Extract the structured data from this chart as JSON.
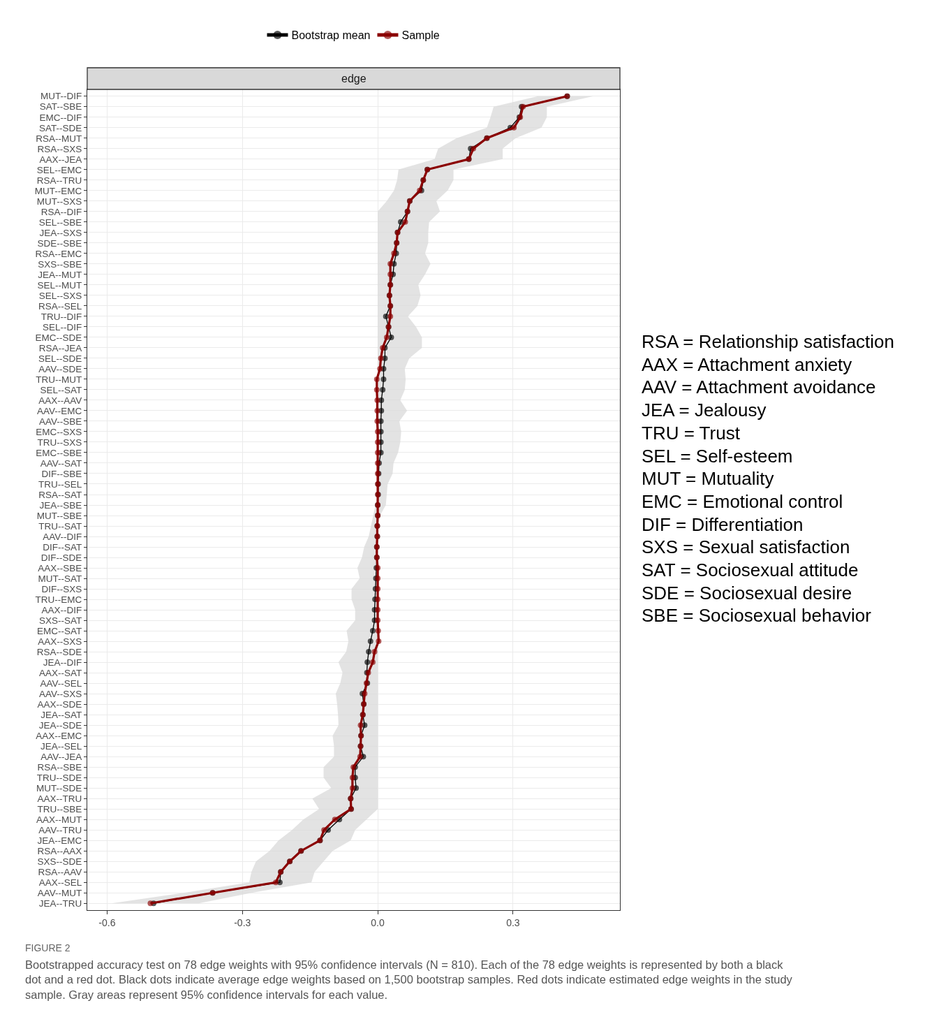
{
  "chart_data": {
    "type": "line",
    "title": "edge",
    "categories": [
      "MUT--DIF",
      "SAT--SBE",
      "EMC--DIF",
      "SAT--SDE",
      "RSA--MUT",
      "RSA--SXS",
      "AAX--JEA",
      "SEL--EMC",
      "RSA--TRU",
      "MUT--EMC",
      "MUT--SXS",
      "RSA--DIF",
      "SEL--SBE",
      "JEA--SXS",
      "SDE--SBE",
      "RSA--EMC",
      "SXS--SBE",
      "JEA--MUT",
      "SEL--MUT",
      "SEL--SXS",
      "RSA--SEL",
      "TRU--DIF",
      "SEL--DIF",
      "EMC--SDE",
      "RSA--JEA",
      "SEL--SDE",
      "AAV--SDE",
      "TRU--MUT",
      "SEL--SAT",
      "AAX--AAV",
      "AAV--EMC",
      "AAV--SBE",
      "EMC--SXS",
      "TRU--SXS",
      "EMC--SBE",
      "AAV--SAT",
      "DIF--SBE",
      "TRU--SEL",
      "RSA--SAT",
      "JEA--SBE",
      "MUT--SBE",
      "TRU--SAT",
      "AAV--DIF",
      "DIF--SAT",
      "DIF--SDE",
      "AAX--SBE",
      "MUT--SAT",
      "DIF--SXS",
      "TRU--EMC",
      "AAX--DIF",
      "SXS--SAT",
      "EMC--SAT",
      "AAX--SXS",
      "RSA--SDE",
      "JEA--DIF",
      "AAX--SAT",
      "AAV--SEL",
      "AAV--SXS",
      "AAX--SDE",
      "JEA--SAT",
      "JEA--SDE",
      "AAX--EMC",
      "JEA--SEL",
      "AAV--JEA",
      "RSA--SBE",
      "TRU--SDE",
      "MUT--SDE",
      "AAX--TRU",
      "TRU--SBE",
      "AAX--MUT",
      "AAV--TRU",
      "JEA--EMC",
      "RSA--AAX",
      "SXS--SDE",
      "RSA--AAV",
      "AAX--SEL",
      "AAV--MUT",
      "JEA--TRU"
    ],
    "orientation": "horizontal",
    "series": [
      {
        "name": "Bootstrap mean",
        "color": "#000000",
        "line_style": "solid",
        "marker": "circle",
        "values": [
          0.42,
          0.319,
          0.314,
          0.294,
          0.242,
          0.206,
          0.202,
          0.11,
          0.101,
          0.097,
          0.071,
          0.066,
          0.051,
          0.044,
          0.042,
          0.041,
          0.036,
          0.034,
          0.028,
          0.026,
          0.028,
          0.018,
          0.024,
          0.03,
          0.016,
          0.016,
          0.013,
          0.013,
          0.011,
          0.008,
          0.008,
          0.007,
          0.007,
          0.007,
          0.007,
          0.003,
          0.002,
          0.001,
          0.001,
          0.0,
          0.0,
          -0.001,
          -0.001,
          -0.002,
          -0.002,
          -0.003,
          -0.004,
          -0.005,
          -0.006,
          -0.007,
          -0.007,
          -0.011,
          -0.016,
          -0.02,
          -0.023,
          -0.024,
          -0.023,
          -0.034,
          -0.031,
          -0.033,
          -0.029,
          -0.037,
          -0.038,
          -0.032,
          -0.05,
          -0.05,
          -0.048,
          -0.06,
          -0.059,
          -0.085,
          -0.11,
          -0.128,
          -0.17,
          -0.195,
          -0.215,
          -0.217,
          -0.366,
          -0.497
        ],
        "lower": [
          0.355,
          0.257,
          0.25,
          0.242,
          0.175,
          0.134,
          0.126,
          0.046,
          0.043,
          0.036,
          0.02,
          0.0,
          0.0,
          0.0,
          0.0,
          0.0,
          0.0,
          0.0,
          0.0,
          0.0,
          0.0,
          0.0,
          0.0,
          0.0,
          0.0,
          0.0,
          0.0,
          0.0,
          0.0,
          0.0,
          0.0,
          0.0,
          0.0,
          0.0,
          0.0,
          0.0,
          0.0,
          0.0,
          0.0,
          -0.005,
          -0.01,
          -0.015,
          -0.02,
          -0.03,
          -0.035,
          -0.045,
          -0.04,
          -0.058,
          -0.058,
          -0.05,
          -0.05,
          -0.069,
          -0.065,
          -0.07,
          -0.087,
          -0.078,
          -0.083,
          -0.093,
          -0.09,
          -0.088,
          -0.087,
          -0.1,
          -0.097,
          -0.097,
          -0.12,
          -0.12,
          -0.103,
          -0.145,
          -0.13,
          -0.165,
          -0.19,
          -0.22,
          -0.24,
          -0.27,
          -0.28,
          -0.285,
          -0.43,
          -0.59
        ],
        "upper": [
          0.478,
          0.375,
          0.375,
          0.363,
          0.306,
          0.277,
          0.277,
          0.168,
          0.168,
          0.155,
          0.13,
          0.138,
          0.114,
          0.112,
          0.112,
          0.105,
          0.117,
          0.105,
          0.09,
          0.095,
          0.088,
          0.067,
          0.085,
          0.098,
          0.098,
          0.07,
          0.06,
          0.062,
          0.06,
          0.05,
          0.065,
          0.048,
          0.052,
          0.05,
          0.045,
          0.035,
          0.033,
          0.022,
          0.02,
          0.018,
          0.005,
          0.0,
          0.0,
          0.0,
          0.0,
          0.0,
          0.0,
          0.0,
          0.0,
          0.0,
          0.0,
          0.0,
          0.0,
          0.0,
          0.0,
          0.0,
          0.0,
          0.0,
          0.0,
          0.0,
          0.0,
          0.0,
          0.0,
          0.0,
          0.0,
          0.0,
          0.0,
          0.0,
          0.0,
          -0.025,
          -0.05,
          -0.06,
          -0.1,
          -0.12,
          -0.14,
          -0.147,
          -0.28,
          -0.397
        ]
      },
      {
        "name": "Sample",
        "color": "#8b0000",
        "line_style": "solid",
        "marker": "circle",
        "values": [
          0.42,
          0.322,
          0.316,
          0.302,
          0.242,
          0.212,
          0.202,
          0.11,
          0.101,
          0.093,
          0.071,
          0.066,
          0.061,
          0.044,
          0.042,
          0.036,
          0.028,
          0.028,
          0.028,
          0.026,
          0.028,
          0.028,
          0.024,
          0.02,
          0.011,
          0.007,
          0.005,
          -0.002,
          -0.002,
          -0.001,
          -0.001,
          -0.001,
          0.0,
          0.0,
          0.0,
          0.0,
          0.0,
          0.0,
          0.0,
          0.0,
          0.0,
          -0.001,
          -0.001,
          -0.002,
          -0.002,
          0.0,
          0.0,
          0.0,
          0.0,
          0.0,
          0.0,
          0.001,
          0.002,
          -0.007,
          -0.011,
          -0.021,
          -0.025,
          -0.029,
          -0.031,
          -0.033,
          -0.038,
          -0.037,
          -0.038,
          -0.039,
          -0.054,
          -0.056,
          -0.056,
          -0.06,
          -0.059,
          -0.095,
          -0.119,
          -0.128,
          -0.17,
          -0.195,
          -0.215,
          -0.226,
          -0.366,
          -0.504
        ]
      }
    ],
    "xlim": [
      -0.644,
      0.537
    ],
    "xticks": [
      -0.6,
      -0.3,
      {
        "value": 0.0,
        "label": "0.0"
      },
      0.3
    ],
    "grid": true,
    "legend": "top",
    "annotations": [
      "RSA = Relationship satisfaction",
      "AAX = Attachment anxiety",
      "AAV = Attachment avoidance",
      "JEA = Jealousy",
      "TRU = Trust",
      "SEL = Self-esteem",
      "MUT = Mutuality",
      "EMC = Emotional control",
      "DIF = Differentiation",
      "SXS = Sexual satisfaction",
      "SAT = Sociosexual attitude",
      "SDE = Sociosexual desire",
      "SBE = Sociosexual behavior",
      "FIGURE 2",
      "Bootstrapped accuracy test on 78 edge weights with 95% confidence intervals (N = 810). Each of the 78 edge weights is represented by both a black dot and a red dot. Black dots indicate average edge weights based on 1,500 bootstrap samples. Red dots indicate estimated edge weights in the study sample. Gray areas represent 95% confidence intervals for each value."
    ]
  }
}
